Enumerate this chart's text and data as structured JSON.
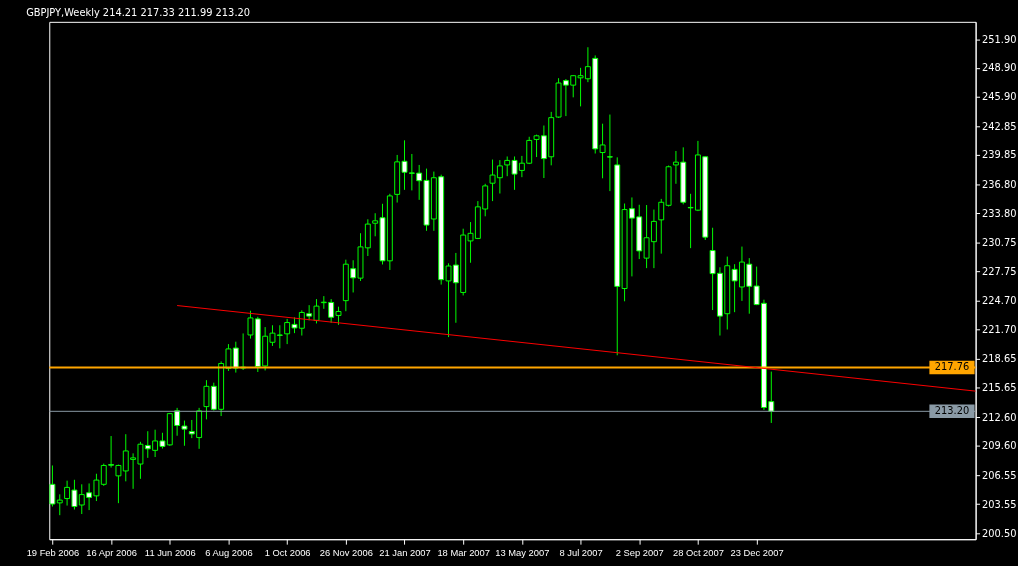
{
  "chart_data": {
    "type": "candlestick",
    "title": "GBPJPY,Weekly 214.21 217.33 211.99 213.20",
    "x": [
      "2006-02-19",
      "2006-02-26",
      "2006-03-05",
      "2006-03-12",
      "2006-03-19",
      "2006-03-26",
      "2006-04-02",
      "2006-04-09",
      "2006-04-16",
      "2006-04-23",
      "2006-04-30",
      "2006-05-07",
      "2006-05-14",
      "2006-05-21",
      "2006-05-28",
      "2006-06-04",
      "2006-06-11",
      "2006-06-18",
      "2006-06-25",
      "2006-07-02",
      "2006-07-09",
      "2006-07-16",
      "2006-07-23",
      "2006-07-30",
      "2006-08-06",
      "2006-08-13",
      "2006-08-20",
      "2006-08-27",
      "2006-09-03",
      "2006-09-10",
      "2006-09-17",
      "2006-09-24",
      "2006-10-01",
      "2006-10-08",
      "2006-10-15",
      "2006-10-22",
      "2006-10-29",
      "2006-11-05",
      "2006-11-12",
      "2006-11-19",
      "2006-11-26",
      "2006-12-03",
      "2006-12-10",
      "2006-12-17",
      "2006-12-24",
      "2006-12-31",
      "2007-01-07",
      "2007-01-14",
      "2007-01-21",
      "2007-01-28",
      "2007-02-04",
      "2007-02-11",
      "2007-02-18",
      "2007-02-25",
      "2007-03-04",
      "2007-03-11",
      "2007-03-18",
      "2007-03-25",
      "2007-04-01",
      "2007-04-08",
      "2007-04-15",
      "2007-04-22",
      "2007-04-29",
      "2007-05-06",
      "2007-05-13",
      "2007-05-20",
      "2007-05-27",
      "2007-06-03",
      "2007-06-10",
      "2007-06-17",
      "2007-06-24",
      "2007-07-01",
      "2007-07-08",
      "2007-07-15",
      "2007-07-22",
      "2007-07-29",
      "2007-08-05",
      "2007-08-12",
      "2007-08-19",
      "2007-08-26",
      "2007-09-02",
      "2007-09-09",
      "2007-09-16",
      "2007-09-23",
      "2007-09-30",
      "2007-10-07",
      "2007-10-14",
      "2007-10-21",
      "2007-10-28",
      "2007-11-04",
      "2007-11-11",
      "2007-11-18",
      "2007-11-25",
      "2007-12-02",
      "2007-12-09",
      "2007-12-16",
      "2007-12-23",
      "2007-12-30",
      "2008-01-06"
    ],
    "ohlc": [
      [
        205.61,
        207.57,
        203.3,
        203.56
      ],
      [
        203.68,
        204.57,
        202.4,
        203.97
      ],
      [
        204.13,
        205.99,
        203.4,
        205.29
      ],
      [
        205.01,
        206.08,
        202.99,
        203.3
      ],
      [
        203.46,
        205.61,
        202.52,
        204.54
      ],
      [
        204.73,
        205.7,
        202.93,
        204.25
      ],
      [
        204.41,
        206.71,
        203.87,
        206.05
      ],
      [
        205.61,
        207.76,
        205.45,
        207.57
      ],
      [
        207.66,
        210.63,
        207.35,
        207.6
      ],
      [
        206.49,
        207.66,
        203.65,
        207.57
      ],
      [
        207.0,
        210.82,
        205.92,
        209.08
      ],
      [
        208.2,
        208.83,
        205.14,
        208.36
      ],
      [
        207.72,
        210.03,
        206.18,
        209.78
      ],
      [
        209.65,
        211.13,
        208.36,
        209.3
      ],
      [
        209.14,
        211.29,
        208.45,
        210.12
      ],
      [
        210.12,
        210.97,
        209.33,
        209.55
      ],
      [
        209.71,
        213.03,
        209.62,
        212.96
      ],
      [
        213.25,
        213.56,
        210.66,
        211.73
      ],
      [
        211.67,
        212.24,
        209.62,
        211.35
      ],
      [
        211.1,
        212.3,
        210.41,
        210.85
      ],
      [
        210.47,
        213.56,
        209.3,
        213.25
      ],
      [
        213.69,
        216.44,
        212.36,
        215.8
      ],
      [
        215.8,
        216.18,
        213.28,
        213.41
      ],
      [
        213.41,
        218.39,
        212.71,
        218.17
      ],
      [
        217.67,
        220.19,
        217.4,
        219.69
      ],
      [
        219.78,
        220.44,
        217.23,
        217.7
      ],
      [
        217.7,
        221.3,
        217.5,
        217.8
      ],
      [
        221.14,
        223.66,
        220.76,
        222.91
      ],
      [
        222.81,
        223.03,
        217.29,
        217.86
      ],
      [
        217.92,
        221.96,
        217.45,
        221.01
      ],
      [
        220.38,
        222.15,
        220.0,
        221.33
      ],
      [
        221.14,
        222.15,
        219.75,
        221.1
      ],
      [
        221.26,
        222.81,
        220.19,
        222.43
      ],
      [
        222.24,
        222.97,
        221.33,
        221.87
      ],
      [
        221.84,
        223.7,
        221.08,
        223.48
      ],
      [
        223.35,
        224.24,
        222.66,
        223.1
      ],
      [
        222.66,
        224.87,
        222.34,
        224.14
      ],
      [
        224.5,
        225.18,
        223.86,
        224.55
      ],
      [
        224.52,
        224.87,
        222.41,
        222.98
      ],
      [
        223.17,
        224.08,
        222.19,
        223.58
      ],
      [
        224.71,
        228.97,
        223.61,
        228.5
      ],
      [
        228.03,
        228.91,
        225.56,
        227.08
      ],
      [
        227.05,
        231.72,
        226.76,
        230.3
      ],
      [
        230.2,
        233.17,
        229.35,
        232.67
      ],
      [
        232.76,
        233.8,
        231.4,
        233.01
      ],
      [
        233.33,
        234.78,
        228.47,
        228.85
      ],
      [
        228.85,
        235.82,
        227.9,
        235.6
      ],
      [
        235.76,
        239.86,
        234.91,
        239.14
      ],
      [
        239.2,
        241.38,
        236.23,
        238.06
      ],
      [
        237.99,
        239.96,
        236.17,
        237.95
      ],
      [
        237.97,
        238.82,
        235.19,
        237.18
      ],
      [
        237.21,
        238.44,
        231.97,
        232.57
      ],
      [
        233.2,
        238.13,
        231.97,
        237.49
      ],
      [
        237.59,
        237.81,
        226.38,
        226.89
      ],
      [
        226.76,
        228.59,
        220.92,
        228.31
      ],
      [
        228.41,
        229.67,
        222.41,
        226.57
      ],
      [
        225.56,
        232.19,
        225.25,
        231.53
      ],
      [
        230.92,
        232.88,
        228.65,
        231.71
      ],
      [
        231.18,
        235.06,
        231.11,
        234.46
      ],
      [
        234.24,
        236.86,
        233.48,
        236.64
      ],
      [
        236.92,
        239.38,
        235.06,
        237.77
      ],
      [
        237.49,
        239.32,
        235.85,
        238.72
      ],
      [
        238.82,
        239.7,
        237.65,
        239.29
      ],
      [
        239.29,
        239.7,
        236.23,
        237.87
      ],
      [
        238.25,
        239.76,
        237.55,
        239.0
      ],
      [
        239.0,
        241.75,
        238.91,
        241.37
      ],
      [
        241.47,
        241.97,
        239.64,
        241.85
      ],
      [
        241.85,
        242.92,
        237.46,
        239.48
      ],
      [
        239.67,
        244.34,
        238.78,
        243.74
      ],
      [
        243.8,
        247.84,
        243.71,
        247.34
      ],
      [
        247.59,
        247.75,
        243.9,
        247.12
      ],
      [
        247.12,
        248.15,
        245.85,
        248.1
      ],
      [
        247.88,
        248.92,
        244.91,
        248.1
      ],
      [
        247.78,
        251.06,
        247.43,
        249.04
      ],
      [
        249.9,
        250.21,
        240.01,
        240.49
      ],
      [
        240.11,
        243.11,
        237.43,
        240.9
      ],
      [
        239.67,
        244.06,
        236.1,
        239.64
      ],
      [
        238.82,
        239.61,
        219.03,
        226.19
      ],
      [
        225.97,
        234.81,
        224.64,
        234.18
      ],
      [
        234.27,
        235.44,
        227.23,
        233.29
      ],
      [
        233.42,
        234.68,
        229.03,
        229.88
      ],
      [
        229.13,
        234.65,
        228.09,
        231.25
      ],
      [
        230.84,
        234.18,
        228.09,
        232.95
      ],
      [
        233.11,
        235.29,
        229.6,
        234.94
      ],
      [
        234.62,
        238.76,
        234.5,
        238.63
      ],
      [
        238.82,
        240.27,
        236.86,
        239.11
      ],
      [
        239.11,
        240.65,
        234.72,
        234.94
      ],
      [
        234.4,
        235.82,
        230.17,
        234.36
      ],
      [
        234.12,
        241.32,
        234.02,
        239.86
      ],
      [
        239.67,
        239.7,
        231.02,
        231.31
      ],
      [
        229.92,
        232.29,
        223.73,
        227.52
      ],
      [
        227.55,
        228.18,
        221.08,
        223.1
      ],
      [
        223.35,
        229.29,
        221.71,
        228.34
      ],
      [
        227.96,
        228.5,
        223.51,
        226.76
      ],
      [
        226.13,
        230.33,
        224.68,
        228.72
      ],
      [
        228.5,
        229.13,
        223.35,
        226.2
      ],
      [
        226.23,
        228.25,
        224.24,
        224.3
      ],
      [
        224.43,
        224.81,
        213.35,
        213.6
      ],
      [
        214.21,
        217.33,
        211.99,
        213.2
      ]
    ],
    "series": [
      {
        "type": "line",
        "color": "#ff0000",
        "x": [
          "2006-06-18",
          "2008-07-19"
        ],
        "values": [
          224.2,
          215.3
        ]
      }
    ],
    "ref_lines": [
      {
        "axis": "y",
        "value": 217.76,
        "label": "217.76",
        "color": "#ffa500"
      },
      {
        "axis": "y",
        "value": 213.2,
        "label": "213.20",
        "color": "#8a9aa6"
      }
    ],
    "xlim": [
      "2006-02-16",
      "2008-07-19"
    ],
    "xticks": [
      {
        "value": "2006-02-19",
        "label": "19 Feb 2006"
      },
      {
        "value": "2006-04-16",
        "label": "16 Apr 2006"
      },
      {
        "value": "2006-06-11",
        "label": "11 Jun 2006"
      },
      {
        "value": "2006-08-06",
        "label": "6 Aug 2006"
      },
      {
        "value": "2006-10-01",
        "label": "1 Oct 2006"
      },
      {
        "value": "2006-11-26",
        "label": "26 Nov 2006"
      },
      {
        "value": "2007-01-21",
        "label": "21 Jan 2007"
      },
      {
        "value": "2007-03-18",
        "label": "18 Mar 2007"
      },
      {
        "value": "2007-05-13",
        "label": "13 May 2007"
      },
      {
        "value": "2007-07-08",
        "label": "8 Jul 2007"
      },
      {
        "value": "2007-09-02",
        "label": "2 Sep 2007"
      },
      {
        "value": "2007-10-28",
        "label": "28 Oct 2007"
      },
      {
        "value": "2007-12-23",
        "label": "23 Dec 2007"
      }
    ],
    "ylim": [
      199.9,
      253.7
    ],
    "yticks": [
      {
        "value": 200.5,
        "label": "200.50"
      },
      {
        "value": 203.55,
        "label": "203.55"
      },
      {
        "value": 206.55,
        "label": "206.55"
      },
      {
        "value": 209.6,
        "label": "209.60"
      },
      {
        "value": 212.6,
        "label": "212.60"
      },
      {
        "value": 215.65,
        "label": "215.65"
      },
      {
        "value": 218.65,
        "label": "218.65"
      },
      {
        "value": 221.7,
        "label": "221.70"
      },
      {
        "value": 224.7,
        "label": "224.70"
      },
      {
        "value": 227.75,
        "label": "227.75"
      },
      {
        "value": 230.75,
        "label": "230.75"
      },
      {
        "value": 233.8,
        "label": "233.80"
      },
      {
        "value": 236.8,
        "label": "236.80"
      },
      {
        "value": 239.85,
        "label": "239.85"
      },
      {
        "value": 242.85,
        "label": "242.85"
      },
      {
        "value": 245.9,
        "label": "245.90"
      },
      {
        "value": 248.9,
        "label": "248.90"
      },
      {
        "value": 251.9,
        "label": "251.90"
      }
    ],
    "grid": false
  }
}
